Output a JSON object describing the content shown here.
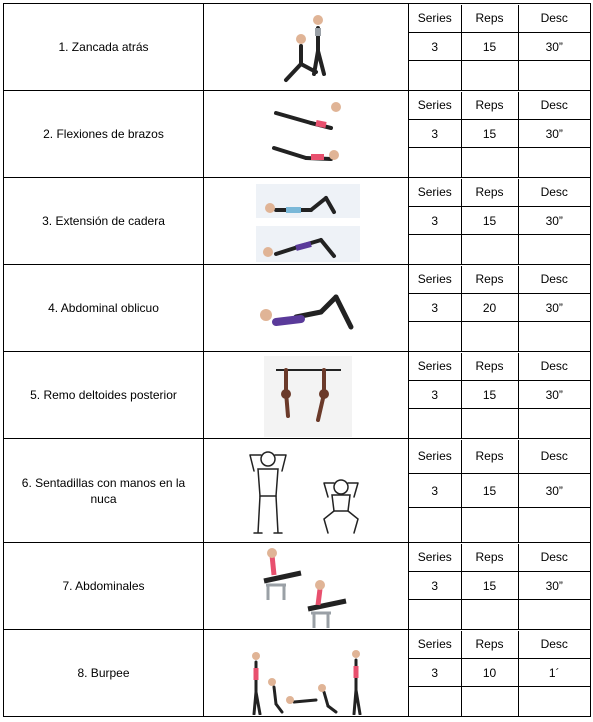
{
  "header": {
    "series": "Series",
    "reps": "Reps",
    "rest": "Desc"
  },
  "exercises": [
    {
      "name": "1. Zancada atrás",
      "series": "3",
      "reps": "15",
      "rest": "30”",
      "illustration": "lunge-icon"
    },
    {
      "name": "2. Flexiones de brazos",
      "series": "3",
      "reps": "15",
      "rest": "30”",
      "illustration": "pushup-icon"
    },
    {
      "name": "3. Extensión de cadera",
      "series": "3",
      "reps": "15",
      "rest": "30”",
      "illustration": "hip-bridge-icon"
    },
    {
      "name": "4. Abdominal oblicuo",
      "series": "3",
      "reps": "20",
      "rest": "30”",
      "illustration": "oblique-crunch-icon"
    },
    {
      "name": "5. Remo deltoides posterior",
      "series": "3",
      "reps": "15",
      "rest": "30”",
      "illustration": "rear-delt-row-icon"
    },
    {
      "name": "6. Sentadillas con manos en la nuca",
      "series": "3",
      "reps": "15",
      "rest": "30”",
      "illustration": "squat-hands-behind-head-icon"
    },
    {
      "name": "7. Abdominales",
      "series": "3",
      "reps": "15",
      "rest": "30”",
      "illustration": "bench-crunch-icon"
    },
    {
      "name": "8. Burpee",
      "series": "3",
      "reps": "10",
      "rest": "1´",
      "illustration": "burpee-icon"
    }
  ],
  "colors": {
    "skin": "#e0b496",
    "pink": "#e8506e",
    "purple": "#5a3a9a",
    "black": "#222222",
    "gray": "#9aa0a6"
  }
}
